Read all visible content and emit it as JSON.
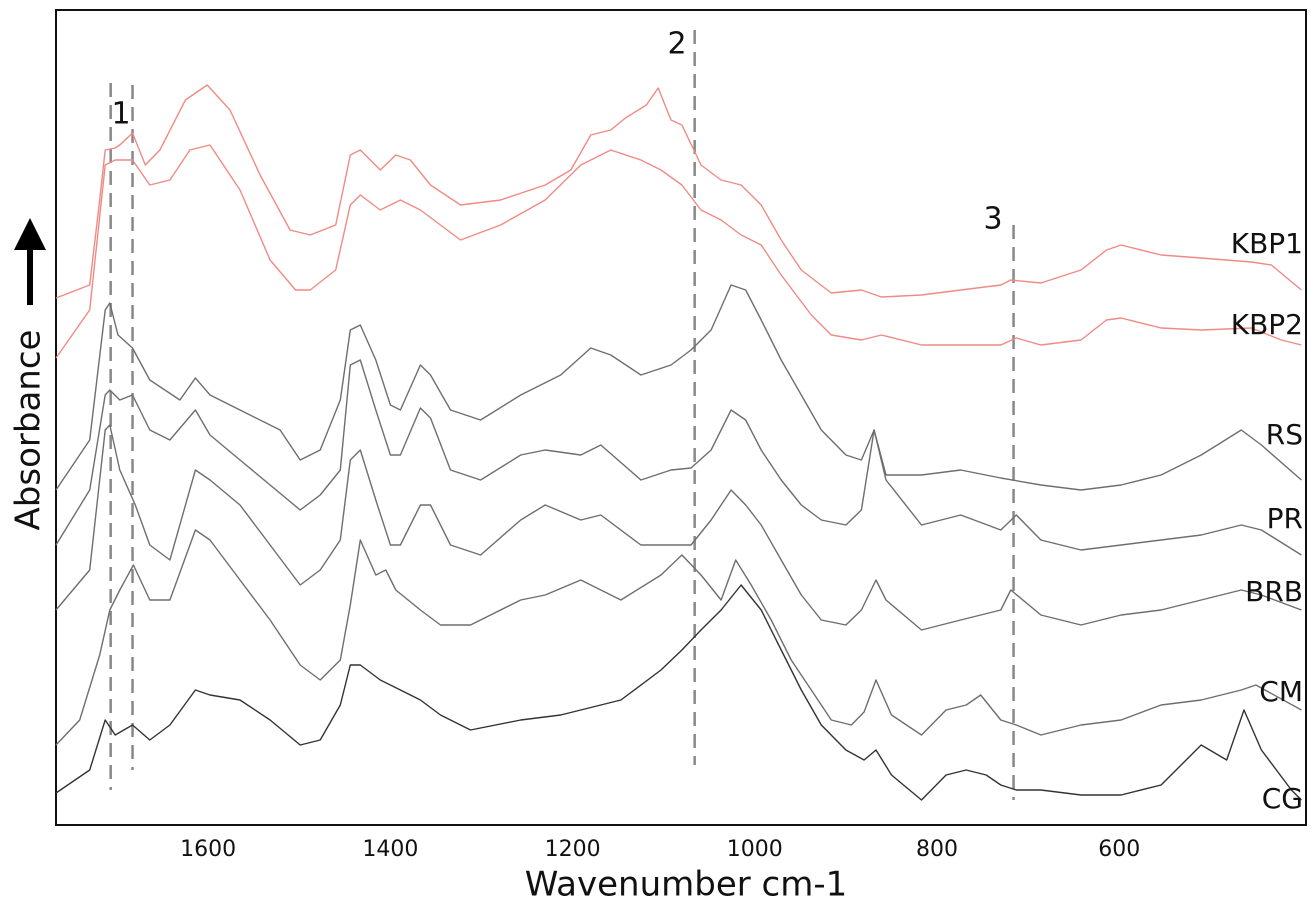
{
  "chart_data": {
    "type": "line",
    "xlabel": "Wavenumber cm-1",
    "ylabel": "Absorbance",
    "xlim": [
      1767,
      395
    ],
    "ylim": [
      0,
      815
    ],
    "xticks": [
      1600,
      1400,
      1200,
      1000,
      800,
      600
    ],
    "markers": [
      {
        "label": "1",
        "x": [
          1707,
          1683
        ]
      },
      {
        "label": "2",
        "x": [
          1066
        ]
      },
      {
        "label": "3",
        "x": [
          716
        ]
      }
    ],
    "series": [
      {
        "name": "KBP1",
        "color": "#f08a84",
        "x": [
          1767,
          1730,
          1719,
          1713,
          1702,
          1697,
          1683,
          1669,
          1653,
          1625,
          1601,
          1576,
          1543,
          1510,
          1488,
          1460,
          1444,
          1433,
          1411,
          1394,
          1378,
          1356,
          1323,
          1279,
          1230,
          1202,
          1180,
          1158,
          1142,
          1119,
          1106,
          1092,
          1080,
          1059,
          1037,
          1015,
          993,
          971,
          949,
          916,
          883,
          861,
          817,
          774,
          730,
          719,
          686,
          642,
          614,
          598,
          554,
          510,
          455,
          433,
          400
        ],
        "values": [
          527,
          540,
          625,
          675,
          677,
          680,
          692,
          660,
          675,
          725,
          740,
          715,
          650,
          595,
          590,
          600,
          670,
          675,
          655,
          670,
          665,
          640,
          620,
          625,
          640,
          655,
          690,
          695,
          707,
          720,
          737,
          705,
          700,
          660,
          645,
          640,
          620,
          585,
          555,
          532,
          535,
          528,
          530,
          535,
          540,
          545,
          542,
          555,
          575,
          580,
          570,
          567,
          563,
          560,
          535
        ]
      },
      {
        "name": "KBP2",
        "color": "#f08a84",
        "x": [
          1767,
          1730,
          1713,
          1702,
          1683,
          1664,
          1642,
          1620,
          1598,
          1565,
          1532,
          1504,
          1488,
          1460,
          1444,
          1433,
          1411,
          1389,
          1367,
          1323,
          1279,
          1230,
          1191,
          1158,
          1125,
          1103,
          1080,
          1059,
          1037,
          1015,
          993,
          971,
          938,
          916,
          883,
          861,
          817,
          774,
          730,
          713,
          686,
          642,
          614,
          598,
          554,
          510,
          455,
          422,
          400
        ],
        "values": [
          467,
          515,
          660,
          665,
          665,
          640,
          645,
          675,
          680,
          635,
          565,
          535,
          535,
          555,
          620,
          630,
          615,
          625,
          615,
          585,
          600,
          625,
          660,
          675,
          665,
          655,
          640,
          615,
          605,
          590,
          580,
          550,
          510,
          490,
          485,
          490,
          480,
          480,
          480,
          487,
          480,
          485,
          505,
          507,
          497,
          495,
          497,
          485,
          480
        ]
      },
      {
        "name": "RS",
        "color": "#6e6e6e",
        "x": [
          1767,
          1730,
          1713,
          1708,
          1699,
          1683,
          1664,
          1631,
          1614,
          1598,
          1565,
          1521,
          1499,
          1477,
          1455,
          1444,
          1433,
          1416,
          1400,
          1389,
          1367,
          1356,
          1334,
          1301,
          1257,
          1213,
          1180,
          1158,
          1125,
          1092,
          1070,
          1048,
          1026,
          1010,
          993,
          971,
          949,
          927,
          900,
          883,
          869,
          856,
          817,
          774,
          730,
          686,
          642,
          598,
          554,
          510,
          466,
          444,
          400
        ],
        "values": [
          335,
          385,
          515,
          522,
          490,
          477,
          445,
          425,
          447,
          430,
          415,
          395,
          365,
          375,
          425,
          495,
          500,
          465,
          420,
          415,
          460,
          450,
          415,
          405,
          430,
          450,
          477,
          470,
          450,
          460,
          475,
          495,
          540,
          535,
          505,
          465,
          430,
          395,
          370,
          365,
          395,
          350,
          350,
          355,
          347,
          340,
          335,
          340,
          350,
          370,
          395,
          380,
          345
        ]
      },
      {
        "name": "PR",
        "color": "#6e6e6e",
        "x": [
          1767,
          1730,
          1713,
          1708,
          1697,
          1683,
          1664,
          1642,
          1614,
          1598,
          1565,
          1532,
          1499,
          1477,
          1455,
          1444,
          1433,
          1416,
          1400,
          1389,
          1367,
          1356,
          1334,
          1301,
          1257,
          1230,
          1191,
          1169,
          1125,
          1092,
          1070,
          1048,
          1026,
          1010,
          993,
          971,
          949,
          927,
          900,
          883,
          869,
          856,
          817,
          774,
          730,
          713,
          686,
          642,
          598,
          554,
          510,
          466,
          444,
          400
        ],
        "values": [
          280,
          335,
          430,
          435,
          425,
          430,
          395,
          385,
          415,
          390,
          365,
          340,
          315,
          330,
          355,
          460,
          465,
          415,
          370,
          370,
          417,
          407,
          355,
          345,
          370,
          375,
          370,
          380,
          345,
          355,
          357,
          375,
          415,
          405,
          375,
          345,
          320,
          305,
          300,
          315,
          395,
          345,
          300,
          310,
          295,
          310,
          285,
          275,
          280,
          285,
          290,
          300,
          295,
          270
        ]
      },
      {
        "name": "BRB",
        "color": "#6e6e6e",
        "x": [
          1767,
          1730,
          1713,
          1708,
          1697,
          1680,
          1664,
          1642,
          1614,
          1598,
          1565,
          1532,
          1499,
          1477,
          1455,
          1444,
          1433,
          1416,
          1400,
          1389,
          1367,
          1356,
          1334,
          1301,
          1257,
          1230,
          1191,
          1169,
          1125,
          1092,
          1070,
          1048,
          1026,
          1010,
          993,
          971,
          949,
          927,
          900,
          883,
          867,
          856,
          817,
          774,
          730,
          719,
          686,
          642,
          598,
          554,
          510,
          466,
          444,
          400
        ],
        "values": [
          215,
          255,
          395,
          400,
          355,
          320,
          280,
          265,
          355,
          345,
          320,
          280,
          240,
          255,
          285,
          365,
          375,
          325,
          280,
          280,
          320,
          320,
          280,
          270,
          305,
          320,
          305,
          310,
          280,
          280,
          280,
          305,
          335,
          320,
          300,
          265,
          230,
          205,
          200,
          215,
          245,
          225,
          195,
          205,
          215,
          235,
          210,
          200,
          210,
          215,
          225,
          235,
          230,
          215
        ]
      },
      {
        "name": "CM",
        "color": "#6e6e6e",
        "x": [
          1767,
          1741,
          1719,
          1708,
          1697,
          1682,
          1664,
          1642,
          1614,
          1598,
          1565,
          1532,
          1499,
          1477,
          1455,
          1444,
          1433,
          1416,
          1405,
          1394,
          1367,
          1345,
          1312,
          1257,
          1230,
          1191,
          1147,
          1103,
          1080,
          1059,
          1037,
          1021,
          1004,
          982,
          960,
          938,
          916,
          894,
          880,
          867,
          850,
          817,
          790,
          768,
          752,
          730,
          713,
          686,
          642,
          598,
          554,
          510,
          466,
          450,
          400
        ],
        "values": [
          80,
          105,
          170,
          215,
          235,
          260,
          225,
          225,
          295,
          285,
          245,
          205,
          160,
          145,
          165,
          220,
          285,
          250,
          255,
          235,
          215,
          200,
          200,
          225,
          230,
          245,
          225,
          250,
          270,
          250,
          225,
          265,
          240,
          205,
          165,
          135,
          105,
          100,
          113,
          145,
          110,
          90,
          115,
          120,
          130,
          105,
          100,
          90,
          100,
          105,
          120,
          125,
          135,
          140,
          115
        ]
      },
      {
        "name": "CG",
        "color": "#333333",
        "x": [
          1767,
          1730,
          1713,
          1702,
          1683,
          1664,
          1642,
          1614,
          1598,
          1565,
          1532,
          1499,
          1477,
          1455,
          1444,
          1433,
          1411,
          1389,
          1367,
          1345,
          1312,
          1257,
          1213,
          1147,
          1103,
          1080,
          1059,
          1037,
          1015,
          993,
          971,
          949,
          927,
          900,
          880,
          867,
          850,
          817,
          790,
          768,
          746,
          730,
          713,
          686,
          642,
          598,
          554,
          510,
          482,
          463,
          444,
          411,
          400
        ],
        "values": [
          32,
          55,
          105,
          90,
          100,
          85,
          100,
          135,
          130,
          125,
          105,
          80,
          85,
          120,
          160,
          160,
          145,
          135,
          125,
          110,
          95,
          105,
          110,
          125,
          155,
          175,
          195,
          215,
          240,
          215,
          175,
          135,
          100,
          75,
          65,
          75,
          50,
          25,
          50,
          55,
          50,
          40,
          35,
          35,
          30,
          30,
          40,
          80,
          65,
          115,
          75,
          35,
          25
        ]
      }
    ]
  }
}
